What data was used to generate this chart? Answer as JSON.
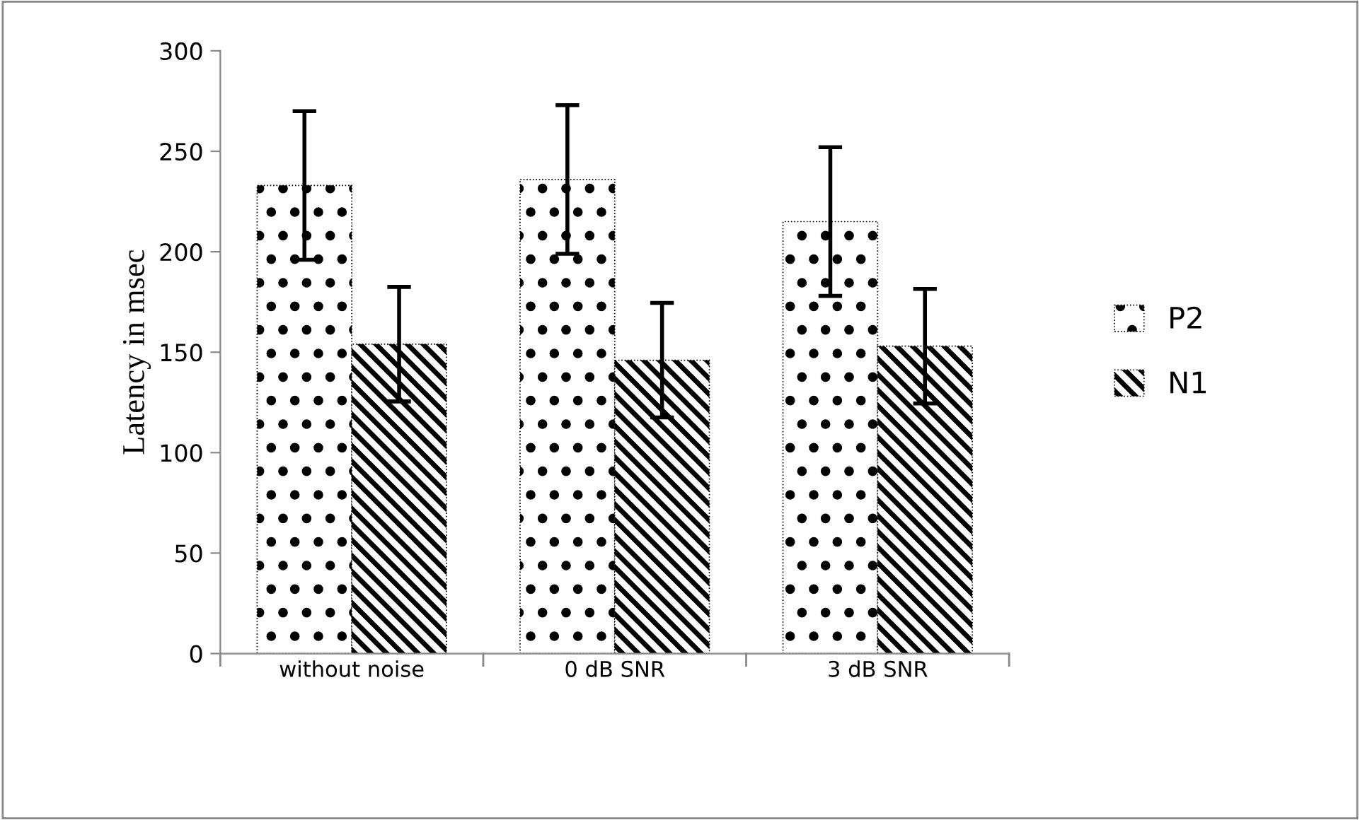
{
  "chart_data": {
    "type": "bar",
    "ylabel": "Latency in msec",
    "categories": [
      "without noise",
      "0 dB SNR",
      "3 dB SNR"
    ],
    "series": [
      {
        "name": "P2",
        "color": "#000000",
        "values": [
          233,
          236,
          215
        ],
        "errors": [
          37,
          37,
          37
        ]
      },
      {
        "name": "N1",
        "color": "#000000",
        "values": [
          154,
          146,
          153
        ],
        "errors": [
          28.5,
          28.5,
          28.5
        ]
      }
    ],
    "ylim": [
      0,
      300
    ],
    "yticks": [
      0,
      50,
      100,
      150,
      200,
      250,
      300
    ],
    "grid": false,
    "legend": "right"
  }
}
